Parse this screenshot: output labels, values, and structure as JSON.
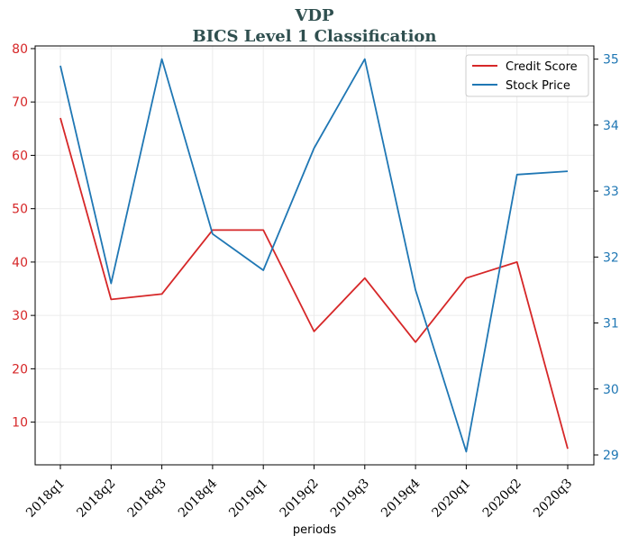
{
  "chart_data": {
    "type": "line",
    "title": "VDP",
    "subtitle": "BICS Level 1 Classification",
    "xlabel": "periods",
    "categories": [
      "2018q1",
      "2018q2",
      "2018q3",
      "2018q4",
      "2019q1",
      "2019q2",
      "2019q3",
      "2019q4",
      "2020q1",
      "2020q2",
      "2020q3"
    ],
    "series": [
      {
        "name": "Credit Score",
        "axis": "left",
        "color": "#d62728",
        "values": [
          67,
          33,
          34,
          46,
          46,
          27,
          37,
          25,
          37,
          40,
          5
        ]
      },
      {
        "name": "Stock Price",
        "axis": "right",
        "color": "#1f77b4",
        "values": [
          34.9,
          31.6,
          35.0,
          32.35,
          31.8,
          33.65,
          35.0,
          31.5,
          29.05,
          33.25,
          33.3
        ]
      }
    ],
    "ylim_left": [
      2,
      80.5
    ],
    "yticks_left": [
      10,
      20,
      30,
      40,
      50,
      60,
      70,
      80
    ],
    "ylim_right": [
      28.85,
      35.2
    ],
    "yticks_right": [
      29,
      30,
      31,
      32,
      33,
      34,
      35
    ],
    "grid": true,
    "legend_position": "top-right"
  }
}
